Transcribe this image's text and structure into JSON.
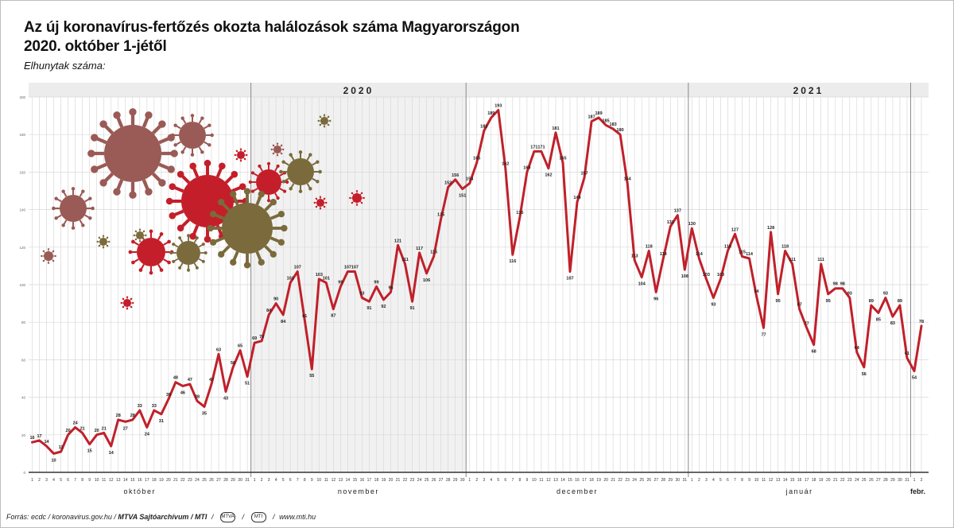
{
  "header": {
    "title_line1": "Az új koronavírus-fertőzés okozta halálozások száma Magyarországon",
    "title_line2": "2020. október 1-jétől",
    "subtitle": "Elhunytak száma:"
  },
  "footer": {
    "source": "Forrás: ecdc / koronavirus.gov.hu /",
    "credit": "MTVA Sajtóarchívum / MTI",
    "logo1": "MTVA",
    "logo2": "MTI",
    "site": "www.mti.hu"
  },
  "colors": {
    "line": "#c0202a",
    "grid": "#d9d9d9",
    "shade": "#f1f1f1"
  },
  "chart_data": {
    "type": "line",
    "ylim": [
      0,
      200
    ],
    "yticks": [
      0,
      20,
      40,
      60,
      80,
      100,
      120,
      140,
      160,
      180,
      200
    ],
    "grid": true,
    "year_labels": [
      "2020",
      "2021"
    ],
    "months": [
      {
        "name": "október",
        "days": 31
      },
      {
        "name": "november",
        "days": 30
      },
      {
        "name": "december",
        "days": 31
      },
      {
        "name": "január",
        "days": 31
      },
      {
        "name": "febr.",
        "days": 2
      }
    ],
    "series": [
      {
        "values": [
          16,
          17,
          14,
          10,
          11,
          20,
          24,
          21,
          15,
          20,
          21,
          14,
          28,
          27,
          28,
          33,
          24,
          33,
          31,
          39,
          48,
          46,
          47,
          38,
          35,
          47,
          63,
          43,
          56,
          65,
          51,
          69,
          70,
          84,
          90,
          84,
          101,
          107,
          81,
          55,
          103,
          101,
          87,
          99,
          107,
          107,
          93,
          91,
          99,
          92,
          96,
          121,
          111,
          91,
          117,
          106,
          115,
          135,
          152,
          156,
          151,
          154,
          165,
          182,
          189,
          193,
          162,
          116,
          136,
          160,
          171,
          171,
          162,
          181,
          165,
          107,
          144,
          157,
          187,
          189,
          185,
          183,
          180,
          154,
          113,
          104,
          118,
          96,
          114,
          131,
          137,
          108,
          130,
          114,
          103,
          93,
          103,
          118,
          127,
          115,
          114,
          94,
          77,
          128,
          95,
          118,
          111,
          87,
          77,
          68,
          111,
          95,
          98,
          98,
          93,
          64,
          56,
          89,
          85,
          93,
          83,
          89,
          61,
          54,
          78
        ]
      }
    ]
  }
}
